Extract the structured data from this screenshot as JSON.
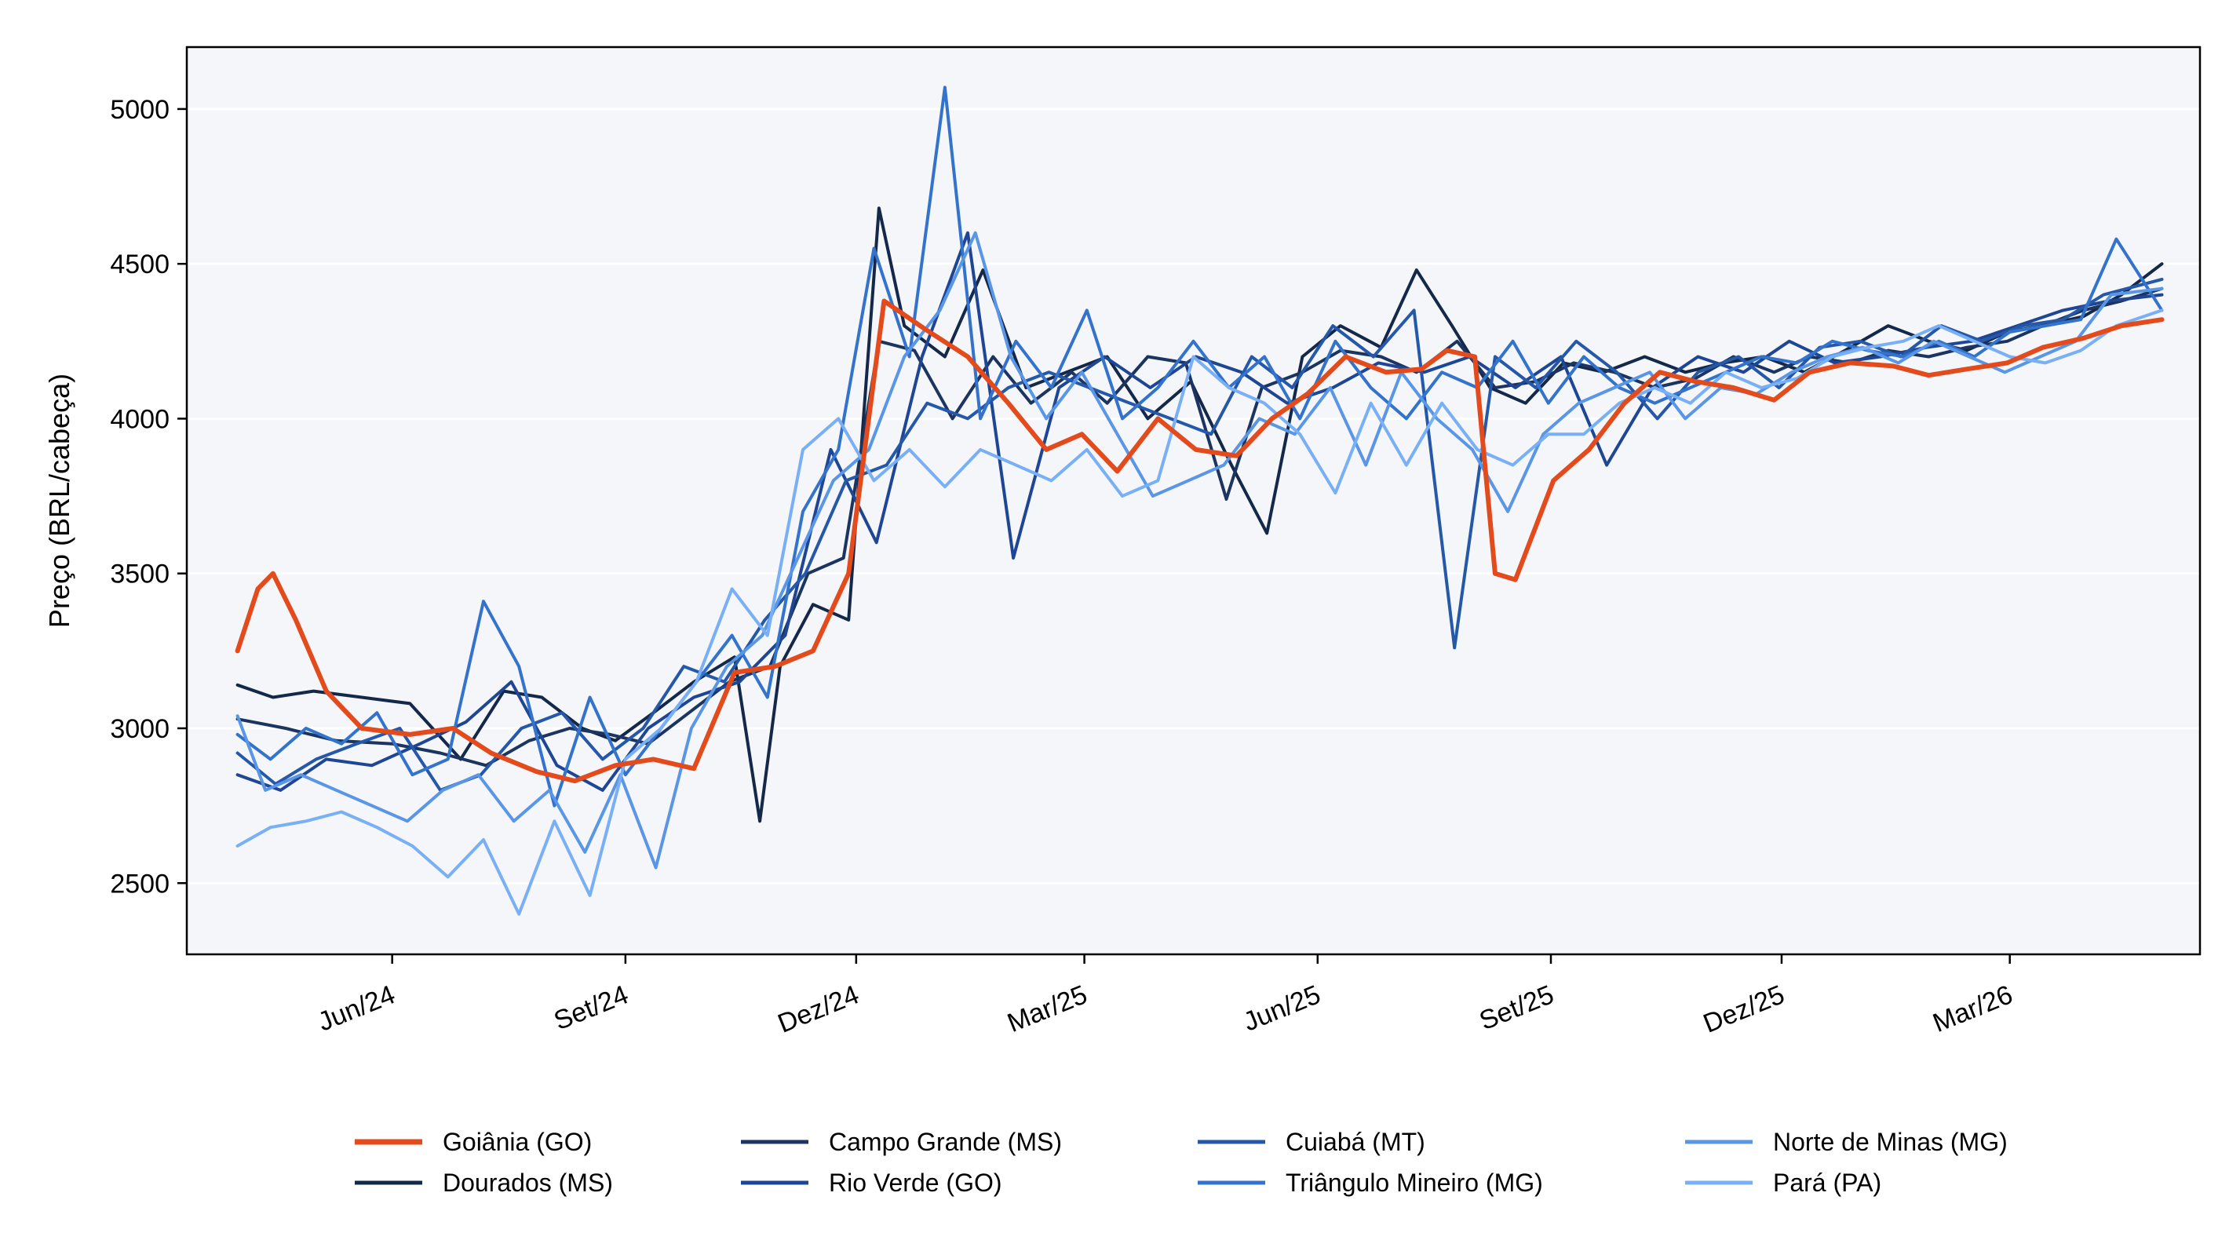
{
  "chart_data": {
    "type": "line",
    "title": "",
    "xlabel": "",
    "ylabel": "Preço (BRL/cabeça)",
    "xlim": [
      "2024-03-12",
      "2026-05-15"
    ],
    "ylim": [
      2270,
      5200
    ],
    "yticks": [
      2500,
      3000,
      3500,
      4000,
      4500,
      5000
    ],
    "xticks": [
      {
        "date": "2024-06-01",
        "label": "Jun/24"
      },
      {
        "date": "2024-09-01",
        "label": "Set/24"
      },
      {
        "date": "2024-12-01",
        "label": "Dez/24"
      },
      {
        "date": "2025-03-01",
        "label": "Mar/25"
      },
      {
        "date": "2025-06-01",
        "label": "Jun/25"
      },
      {
        "date": "2025-09-01",
        "label": "Set/25"
      },
      {
        "date": "2025-12-01",
        "label": "Dez/25"
      },
      {
        "date": "2026-03-01",
        "label": "Mar/26"
      }
    ],
    "grid": "horizontal",
    "legend_position": "bottom",
    "colors": {
      "background": "#f4f6fa",
      "highlight": "#e34a1c"
    },
    "series": [
      {
        "name": "Goiânia (GO)",
        "color": "#e34a1c",
        "width": 6,
        "x": [
          "2024-04-01",
          "2024-04-09",
          "2024-04-15",
          "2024-04-24",
          "2024-05-06",
          "2024-05-20",
          "2024-06-08",
          "2024-06-25",
          "2024-07-10",
          "2024-07-28",
          "2024-08-12",
          "2024-08-28",
          "2024-09-12",
          "2024-09-28",
          "2024-10-14",
          "2024-10-30",
          "2024-11-14",
          "2024-11-28",
          "2024-12-12",
          "2024-12-28",
          "2025-01-14",
          "2025-01-30",
          "2025-02-14",
          "2025-02-28",
          "2025-03-14",
          "2025-03-30",
          "2025-04-14",
          "2025-04-30",
          "2025-05-14",
          "2025-05-28",
          "2025-06-12",
          "2025-06-28",
          "2025-07-12",
          "2025-07-22",
          "2025-08-02",
          "2025-08-10",
          "2025-08-18",
          "2025-09-02",
          "2025-09-16",
          "2025-09-30",
          "2025-10-14",
          "2025-10-28",
          "2025-11-12",
          "2025-11-28",
          "2025-12-12",
          "2025-12-28",
          "2026-01-14",
          "2026-01-28",
          "2026-02-12",
          "2026-02-28",
          "2026-03-14",
          "2026-03-30",
          "2026-04-14",
          "2026-04-30"
        ],
        "values": [
          3250,
          3450,
          3500,
          3350,
          3120,
          3000,
          2980,
          3000,
          2920,
          2860,
          2830,
          2880,
          2900,
          2870,
          3180,
          3200,
          3250,
          3500,
          4380,
          4290,
          4200,
          4050,
          3900,
          3950,
          3830,
          4000,
          3900,
          3880,
          4000,
          4080,
          4200,
          4150,
          4160,
          4220,
          4200,
          3500,
          3480,
          3800,
          3900,
          4050,
          4150,
          4120,
          4100,
          4060,
          4150,
          4180,
          4170,
          4140,
          4160,
          4180,
          4230,
          4260,
          4300,
          4320
        ]
      },
      {
        "name": "Dourados (MS)",
        "color": "#14284a",
        "width": 4,
        "x": [
          "2024-04-01",
          "2024-04-15",
          "2024-05-01",
          "2024-05-20",
          "2024-06-08",
          "2024-06-28",
          "2024-07-15",
          "2024-07-30",
          "2024-08-15",
          "2024-08-28",
          "2024-09-12",
          "2024-09-28",
          "2024-10-14",
          "2024-10-24",
          "2024-11-01",
          "2024-11-14",
          "2024-11-28",
          "2024-12-10",
          "2024-12-20",
          "2025-01-05",
          "2025-01-20",
          "2025-02-06",
          "2025-02-22",
          "2025-03-10",
          "2025-03-26",
          "2025-04-12",
          "2025-04-28",
          "2025-05-12",
          "2025-05-26",
          "2025-06-10",
          "2025-06-26",
          "2025-07-10",
          "2025-07-24",
          "2025-08-08",
          "2025-08-22",
          "2025-09-06",
          "2025-09-22",
          "2025-10-08",
          "2025-10-24",
          "2025-11-08",
          "2025-11-24",
          "2025-12-10",
          "2025-12-26",
          "2026-01-12",
          "2026-01-28",
          "2026-02-12",
          "2026-02-28",
          "2026-03-14",
          "2026-03-30",
          "2026-04-14",
          "2026-04-30"
        ],
        "values": [
          3140,
          3100,
          3120,
          3100,
          3080,
          2900,
          3120,
          3100,
          3000,
          2960,
          3050,
          3150,
          3230,
          2700,
          3200,
          3400,
          3350,
          4680,
          4300,
          4200,
          4480,
          4100,
          4150,
          4200,
          4000,
          4120,
          3850,
          3630,
          4200,
          4300,
          4230,
          4480,
          4300,
          4100,
          4050,
          4180,
          4150,
          4200,
          4150,
          4180,
          4200,
          4150,
          4220,
          4300,
          4250,
          4220,
          4280,
          4300,
          4330,
          4400,
          4500
        ]
      },
      {
        "name": "Campo Grande (MS)",
        "color": "#1b3560",
        "width": 4,
        "x": [
          "2024-04-01",
          "2024-04-20",
          "2024-05-10",
          "2024-06-01",
          "2024-06-20",
          "2024-07-08",
          "2024-07-25",
          "2024-08-10",
          "2024-08-26",
          "2024-09-10",
          "2024-09-26",
          "2024-10-12",
          "2024-10-28",
          "2024-11-12",
          "2024-11-26",
          "2024-12-10",
          "2024-12-24",
          "2025-01-08",
          "2025-01-24",
          "2025-02-08",
          "2025-02-24",
          "2025-03-10",
          "2025-03-26",
          "2025-04-10",
          "2025-04-26",
          "2025-05-10",
          "2025-05-26",
          "2025-06-10",
          "2025-06-26",
          "2025-07-10",
          "2025-07-26",
          "2025-08-10",
          "2025-08-26",
          "2025-09-10",
          "2025-09-26",
          "2025-10-12",
          "2025-10-28",
          "2025-11-12",
          "2025-11-28",
          "2025-12-12",
          "2025-12-28",
          "2026-01-12",
          "2026-01-28",
          "2026-02-12",
          "2026-02-28",
          "2026-03-14",
          "2026-03-30",
          "2026-04-14",
          "2026-04-30"
        ],
        "values": [
          3030,
          3000,
          2960,
          2950,
          2920,
          2880,
          2960,
          3000,
          2980,
          2950,
          3050,
          3150,
          3200,
          3500,
          3550,
          4250,
          4220,
          4000,
          4200,
          4050,
          4150,
          4050,
          4200,
          4180,
          3740,
          4100,
          4150,
          4220,
          4200,
          4150,
          4250,
          4100,
          4120,
          4180,
          4150,
          4100,
          4130,
          4200,
          4150,
          4200,
          4180,
          4220,
          4200,
          4230,
          4250,
          4300,
          4350,
          4380,
          4420
        ]
      },
      {
        "name": "Rio Verde (GO)",
        "color": "#1f4694",
        "width": 4,
        "x": [
          "2024-04-01",
          "2024-04-18",
          "2024-05-06",
          "2024-05-24",
          "2024-06-12",
          "2024-06-30",
          "2024-07-18",
          "2024-08-05",
          "2024-08-23",
          "2024-09-10",
          "2024-09-28",
          "2024-10-16",
          "2024-11-03",
          "2024-11-21",
          "2024-12-09",
          "2024-12-27",
          "2025-01-14",
          "2025-02-01",
          "2025-02-19",
          "2025-03-09",
          "2025-03-27",
          "2025-04-14",
          "2025-05-02",
          "2025-05-20",
          "2025-06-07",
          "2025-06-25",
          "2025-07-13",
          "2025-07-31",
          "2025-08-18",
          "2025-09-05",
          "2025-09-23",
          "2025-10-11",
          "2025-10-29",
          "2025-11-16",
          "2025-12-04",
          "2025-12-22",
          "2026-01-09",
          "2026-01-27",
          "2026-02-14",
          "2026-03-04",
          "2026-03-22",
          "2026-04-09",
          "2026-04-30"
        ],
        "values": [
          2850,
          2800,
          2900,
          2880,
          2950,
          3020,
          3150,
          2880,
          2800,
          3000,
          3100,
          3150,
          3300,
          3900,
          3600,
          4200,
          4600,
          3550,
          4100,
          4200,
          4100,
          4200,
          4150,
          4050,
          4100,
          4180,
          4150,
          4200,
          4100,
          4200,
          3850,
          4100,
          4200,
          4150,
          4250,
          4180,
          4200,
          4230,
          4250,
          4300,
          4350,
          4380,
          4400
        ]
      },
      {
        "name": "Cuiabá (MT)",
        "color": "#2558a8",
        "width": 4,
        "x": [
          "2024-04-01",
          "2024-04-16",
          "2024-05-02",
          "2024-05-18",
          "2024-06-04",
          "2024-06-20",
          "2024-07-06",
          "2024-07-22",
          "2024-08-07",
          "2024-08-23",
          "2024-09-08",
          "2024-09-24",
          "2024-10-10",
          "2024-10-26",
          "2024-11-11",
          "2024-11-27",
          "2024-12-13",
          "2024-12-29",
          "2025-01-14",
          "2025-01-30",
          "2025-02-15",
          "2025-03-03",
          "2025-03-19",
          "2025-04-04",
          "2025-04-20",
          "2025-05-06",
          "2025-05-22",
          "2025-06-07",
          "2025-06-23",
          "2025-07-09",
          "2025-07-25",
          "2025-08-10",
          "2025-08-26",
          "2025-09-11",
          "2025-09-27",
          "2025-10-13",
          "2025-10-29",
          "2025-11-14",
          "2025-11-30",
          "2025-12-16",
          "2026-01-01",
          "2026-01-17",
          "2026-02-02",
          "2026-02-18",
          "2026-03-06",
          "2026-03-22",
          "2026-04-07",
          "2026-04-30"
        ],
        "values": [
          2920,
          2820,
          2900,
          2950,
          3000,
          2800,
          2850,
          3000,
          3050,
          2900,
          3000,
          3200,
          3150,
          3350,
          3500,
          3800,
          3850,
          4050,
          4000,
          4100,
          4150,
          4100,
          4050,
          4000,
          3950,
          4200,
          4100,
          4300,
          4200,
          4350,
          3260,
          4200,
          4100,
          4250,
          4150,
          4000,
          4150,
          4200,
          4100,
          4230,
          4250,
          4200,
          4300,
          4250,
          4300,
          4320,
          4400,
          4450
        ]
      },
      {
        "name": "Triângulo Mineiro (MG)",
        "color": "#3373cc",
        "width": 4,
        "x": [
          "2024-04-01",
          "2024-04-14",
          "2024-04-28",
          "2024-05-12",
          "2024-05-26",
          "2024-06-09",
          "2024-06-23",
          "2024-07-07",
          "2024-07-21",
          "2024-08-04",
          "2024-08-18",
          "2024-09-01",
          "2024-09-15",
          "2024-09-29",
          "2024-10-13",
          "2024-10-27",
          "2024-11-10",
          "2024-11-24",
          "2024-12-08",
          "2024-12-22",
          "2025-01-05",
          "2025-01-19",
          "2025-02-02",
          "2025-02-16",
          "2025-03-02",
          "2025-03-16",
          "2025-03-30",
          "2025-04-13",
          "2025-04-27",
          "2025-05-11",
          "2025-05-25",
          "2025-06-08",
          "2025-06-22",
          "2025-07-06",
          "2025-07-20",
          "2025-08-03",
          "2025-08-17",
          "2025-08-31",
          "2025-09-14",
          "2025-09-28",
          "2025-10-12",
          "2025-10-26",
          "2025-11-09",
          "2025-11-23",
          "2025-12-07",
          "2025-12-21",
          "2026-01-04",
          "2026-01-18",
          "2026-02-01",
          "2026-02-15",
          "2026-03-01",
          "2026-03-15",
          "2026-03-29",
          "2026-04-12",
          "2026-04-30"
        ],
        "values": [
          2980,
          2900,
          3000,
          2950,
          3050,
          2850,
          2900,
          3410,
          3200,
          2750,
          3100,
          2850,
          3000,
          3150,
          3300,
          3100,
          3700,
          3900,
          4550,
          4200,
          5070,
          4000,
          4250,
          4100,
          4350,
          4000,
          4100,
          4250,
          4100,
          4200,
          4000,
          4250,
          4100,
          4000,
          4150,
          4100,
          4250,
          4050,
          4200,
          4100,
          4050,
          4100,
          4150,
          4200,
          4180,
          4250,
          4220,
          4200,
          4250,
          4200,
          4280,
          4300,
          4320,
          4580,
          4350
        ]
      },
      {
        "name": "Norte de Minas (MG)",
        "color": "#5a96e6",
        "width": 4,
        "x": [
          "2024-04-01",
          "2024-04-12",
          "2024-04-26",
          "2024-05-10",
          "2024-05-24",
          "2024-06-07",
          "2024-06-21",
          "2024-07-05",
          "2024-07-19",
          "2024-08-02",
          "2024-08-16",
          "2024-08-30",
          "2024-09-13",
          "2024-09-27",
          "2024-10-11",
          "2024-10-25",
          "2024-11-08",
          "2024-11-22",
          "2024-12-06",
          "2024-12-20",
          "2025-01-03",
          "2025-01-17",
          "2025-01-31",
          "2025-02-14",
          "2025-02-28",
          "2025-03-14",
          "2025-03-28",
          "2025-04-11",
          "2025-04-25",
          "2025-05-09",
          "2025-05-23",
          "2025-06-06",
          "2025-06-20",
          "2025-07-04",
          "2025-07-18",
          "2025-08-01",
          "2025-08-15",
          "2025-08-29",
          "2025-09-12",
          "2025-09-26",
          "2025-10-10",
          "2025-10-24",
          "2025-11-07",
          "2025-11-21",
          "2025-12-05",
          "2025-12-19",
          "2026-01-02",
          "2026-01-16",
          "2026-01-30",
          "2026-02-13",
          "2026-02-27",
          "2026-03-13",
          "2026-03-27",
          "2026-04-10",
          "2026-04-30"
        ],
        "values": [
          3040,
          2800,
          2850,
          2800,
          2750,
          2700,
          2800,
          2850,
          2700,
          2800,
          2600,
          2850,
          2550,
          3000,
          3200,
          3300,
          3550,
          3800,
          3900,
          4200,
          4350,
          4600,
          4200,
          4000,
          4150,
          3950,
          3750,
          3800,
          3850,
          4000,
          3950,
          4100,
          3850,
          4150,
          4000,
          3900,
          3700,
          3950,
          4050,
          4100,
          4150,
          4000,
          4100,
          4080,
          4150,
          4200,
          4230,
          4180,
          4250,
          4200,
          4150,
          4200,
          4250,
          4400,
          4420
        ]
      },
      {
        "name": "Pará (PA)",
        "color": "#79b0f5",
        "width": 4,
        "x": [
          "2024-04-01",
          "2024-04-14",
          "2024-04-28",
          "2024-05-12",
          "2024-05-26",
          "2024-06-09",
          "2024-06-23",
          "2024-07-07",
          "2024-07-21",
          "2024-08-04",
          "2024-08-18",
          "2024-09-01",
          "2024-09-15",
          "2024-09-29",
          "2024-10-13",
          "2024-10-27",
          "2024-11-10",
          "2024-11-24",
          "2024-12-08",
          "2024-12-22",
          "2025-01-05",
          "2025-01-19",
          "2025-02-02",
          "2025-02-16",
          "2025-03-02",
          "2025-03-16",
          "2025-03-30",
          "2025-04-13",
          "2025-04-27",
          "2025-05-11",
          "2025-05-25",
          "2025-06-08",
          "2025-06-22",
          "2025-07-06",
          "2025-07-20",
          "2025-08-03",
          "2025-08-17",
          "2025-08-31",
          "2025-09-14",
          "2025-09-28",
          "2025-10-12",
          "2025-10-26",
          "2025-11-09",
          "2025-11-23",
          "2025-12-07",
          "2025-12-21",
          "2026-01-04",
          "2026-01-18",
          "2026-02-01",
          "2026-02-15",
          "2026-03-01",
          "2026-03-15",
          "2026-03-29",
          "2026-04-12",
          "2026-04-30"
        ],
        "values": [
          2620,
          2680,
          2700,
          2730,
          2680,
          2620,
          2520,
          2640,
          2400,
          2700,
          2460,
          2900,
          3000,
          3150,
          3450,
          3300,
          3900,
          4000,
          3800,
          3900,
          3780,
          3900,
          3850,
          3800,
          3900,
          3750,
          3800,
          4200,
          4100,
          4050,
          3950,
          3760,
          4050,
          3850,
          4050,
          3900,
          3850,
          3950,
          3950,
          4050,
          4100,
          4050,
          4150,
          4100,
          4130,
          4200,
          4230,
          4250,
          4300,
          4250,
          4200,
          4180,
          4220,
          4300,
          4350
        ]
      }
    ]
  }
}
